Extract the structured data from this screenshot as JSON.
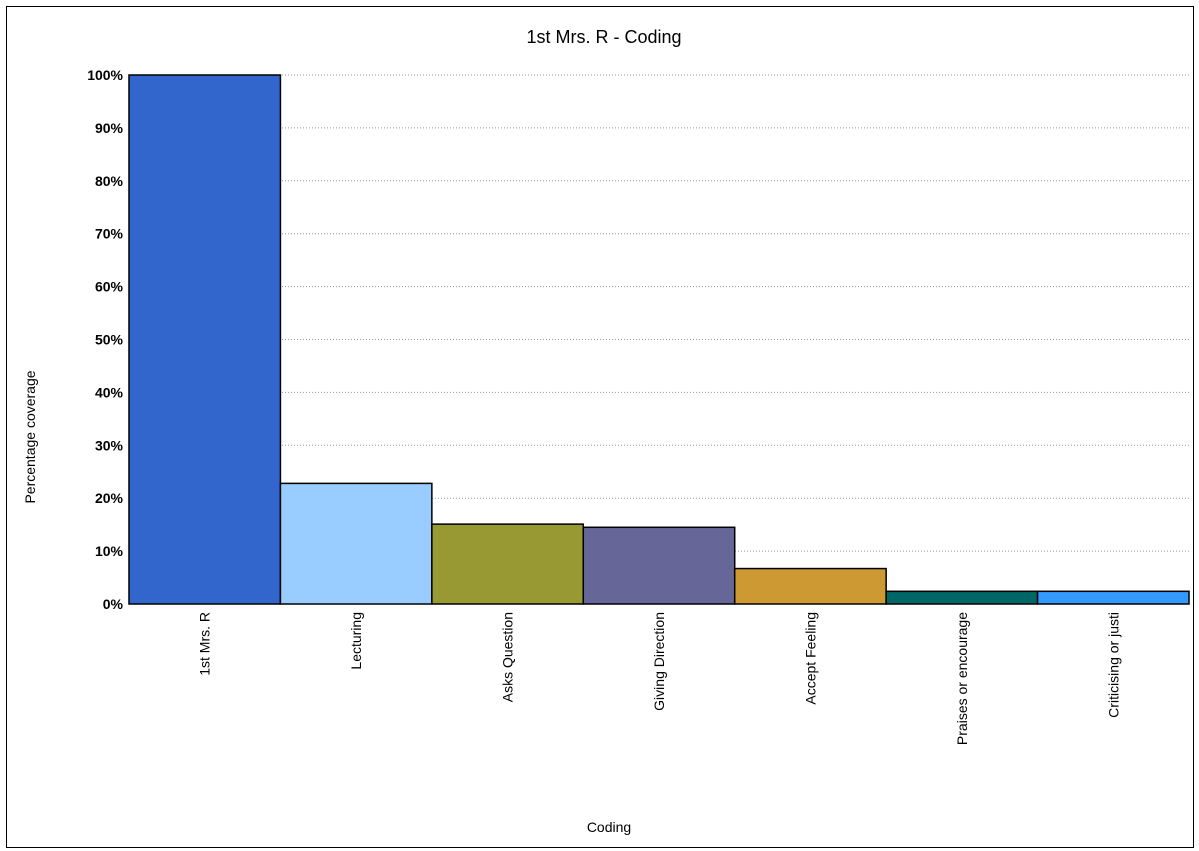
{
  "chart_data": {
    "type": "bar",
    "title": "1st Mrs. R - Coding",
    "xlabel": "Coding",
    "ylabel": "Percentage coverage",
    "ylim": [
      0,
      100
    ],
    "yticks": [
      "0%",
      "10%",
      "20%",
      "30%",
      "40%",
      "50%",
      "60%",
      "70%",
      "80%",
      "90%",
      "100%"
    ],
    "grid": true,
    "categories": [
      "1st Mrs. R",
      "Lecturing",
      "Asks Question",
      "Giving Direction",
      "Accept Feeling",
      "Praises or encourage",
      "Criticising or justi"
    ],
    "values": [
      100,
      22.8,
      15.1,
      14.5,
      6.7,
      2.4,
      2.4
    ],
    "colors": [
      "#3366cc",
      "#99ccff",
      "#999933",
      "#666699",
      "#cc9933",
      "#006666",
      "#3399ff"
    ]
  }
}
